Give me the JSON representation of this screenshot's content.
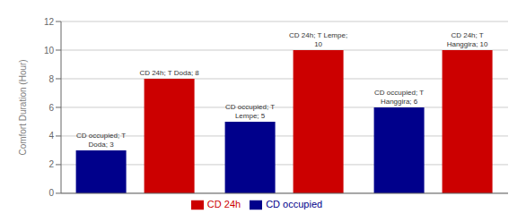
{
  "chart_data": {
    "type": "bar",
    "ylabel": "Comfort Duration (Hour)",
    "categories": [
      null,
      null,
      null
    ],
    "series": [
      {
        "name": "CD occupied",
        "color": "#00008B",
        "values": [
          3,
          5,
          6
        ],
        "value_labels": [
          "CD occupied; T\nDoda; 3",
          "CD occupied; T\nLempe; 5",
          "CD occupied; T\nHanggira; 6"
        ]
      },
      {
        "name": "CD 24h",
        "color": "#CC0000",
        "values": [
          8,
          10,
          10
        ],
        "value_labels": [
          "CD 24h; T Doda; 8",
          "CD 24h; T Lempe;\n10",
          "CD 24h; T\nHanggira; 10"
        ]
      }
    ],
    "ylim": [
      0,
      12
    ],
    "yticks": [
      0,
      2,
      4,
      6,
      8,
      10,
      12
    ],
    "grid": true,
    "legend": "bottom",
    "data_labels": true,
    "tick_labels": "y"
  }
}
